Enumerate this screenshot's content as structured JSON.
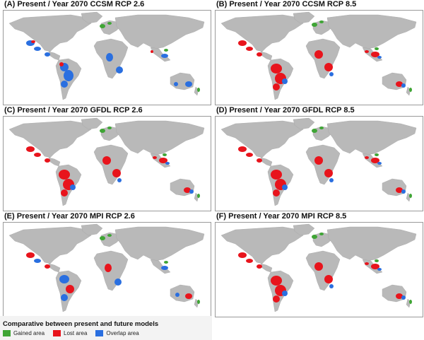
{
  "panels": [
    {
      "title": "(A) Present / Year 2070 CCSM RCP 2.6",
      "emphasis": "overlap"
    },
    {
      "title": "(B) Present / Year 2070 CCSM RCP 8.5",
      "emphasis": "lost"
    },
    {
      "title": "(C) Present / Year 2070 GFDL RCP 2.6",
      "emphasis": "lost"
    },
    {
      "title": "(D) Present / Year 2070 GFDL RCP 8.5",
      "emphasis": "lost"
    },
    {
      "title": "(E) Present / Year 2070 MPI RCP 2.6",
      "emphasis": "mixed"
    },
    {
      "title": "(F) Present / Year 2070 MPI RCP 8.5",
      "emphasis": "lost"
    }
  ],
  "legend": {
    "title": "Comparative between present and future models",
    "items": [
      {
        "label": "Gained area",
        "color": "#3fa535"
      },
      {
        "label": "Lost area",
        "color": "#e8141c"
      },
      {
        "label": "Overlap area",
        "color": "#2a6fe0"
      }
    ]
  },
  "colors": {
    "land": "#b9b9b9",
    "gained": "#3fa535",
    "lost": "#e8141c",
    "overlap": "#2a6fe0"
  }
}
